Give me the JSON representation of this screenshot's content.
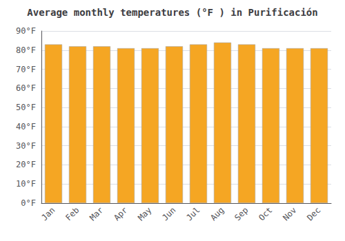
{
  "chart_data": {
    "type": "bar",
    "title": "Average monthly temperatures (°F ) in Purificación",
    "categories": [
      "Jan",
      "Feb",
      "Mar",
      "Apr",
      "May",
      "Jun",
      "Jul",
      "Aug",
      "Sep",
      "Oct",
      "Nov",
      "Dec"
    ],
    "values": [
      83,
      82,
      82,
      81,
      81,
      82,
      83,
      84,
      83,
      81,
      81,
      81
    ],
    "color": "#F5A623",
    "ylim": [
      0,
      90
    ],
    "yticks": [
      {
        "value": 0,
        "label": "0°F"
      },
      {
        "value": 10,
        "label": "10°F"
      },
      {
        "value": 20,
        "label": "20°F"
      },
      {
        "value": 30,
        "label": "30°F"
      },
      {
        "value": 40,
        "label": "40°F"
      },
      {
        "value": 50,
        "label": "50°F"
      },
      {
        "value": 60,
        "label": "60°F"
      },
      {
        "value": 70,
        "label": "70°F"
      },
      {
        "value": 80,
        "label": "80°F"
      },
      {
        "value": 90,
        "label": "90°F"
      }
    ],
    "grid": true
  }
}
